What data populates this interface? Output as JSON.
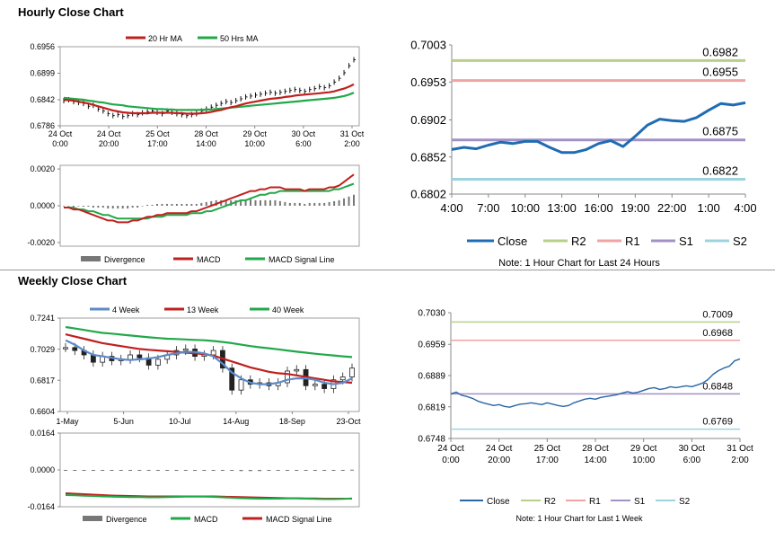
{
  "titles": {
    "hourly": "Hourly Close Chart",
    "weekly": "Weekly Close Chart"
  },
  "colors": {
    "ma20": "#c0201e",
    "ma50": "#22a84a",
    "price": "#111111",
    "close_blue": "#1f6cb4",
    "weekly_close": "#2a67a6",
    "r2": "#b7d087",
    "r1": "#f0a3a3",
    "s1": "#a391c4",
    "s2": "#9dd3dd",
    "divergence": "#777777",
    "macd": "#c0201e",
    "signal": "#22a84a",
    "week4": "#5d8ac9",
    "week13": "#c0201e",
    "week40": "#22a84a"
  },
  "chart_data": [
    {
      "id": "hourly_ma",
      "type": "line",
      "title": "Hourly Close Chart",
      "legend": [
        "20 Hr MA",
        "50 Hrs MA"
      ],
      "y_ticks": [
        "0.6956",
        "0.6899",
        "0.6842",
        "0.6786"
      ],
      "ylim": [
        0.6786,
        0.6956
      ],
      "x_ticks": [
        [
          "24 Oct",
          "0:00"
        ],
        [
          "24 Oct",
          "20:00"
        ],
        [
          "25 Oct",
          "17:00"
        ],
        [
          "28 Oct",
          "14:00"
        ],
        [
          "29 Oct",
          "10:00"
        ],
        [
          "30 Oct",
          "6:00"
        ],
        [
          "31 Oct",
          "2:00"
        ]
      ],
      "price": [
        0.684,
        0.6842,
        0.6838,
        0.6836,
        0.6834,
        0.6828,
        0.683,
        0.6822,
        0.6818,
        0.6812,
        0.6808,
        0.681,
        0.6806,
        0.6808,
        0.6812,
        0.681,
        0.6814,
        0.6816,
        0.6818,
        0.6815,
        0.6812,
        0.6818,
        0.6815,
        0.6812,
        0.681,
        0.6808,
        0.681,
        0.6812,
        0.6818,
        0.6822,
        0.6826,
        0.683,
        0.6834,
        0.6838,
        0.6836,
        0.684,
        0.6844,
        0.6848,
        0.685,
        0.6852,
        0.6854,
        0.6856,
        0.6858,
        0.6856,
        0.6858,
        0.686,
        0.6862,
        0.6864,
        0.6862,
        0.686,
        0.6864,
        0.6866,
        0.687,
        0.6868,
        0.6872,
        0.688,
        0.6888,
        0.69,
        0.6915,
        0.6928
      ],
      "ma20": [
        0.6842,
        0.6841,
        0.684,
        0.6838,
        0.6836,
        0.6834,
        0.6831,
        0.6828,
        0.6825,
        0.6822,
        0.6819,
        0.6817,
        0.6815,
        0.6814,
        0.6813,
        0.6813,
        0.6813,
        0.6813,
        0.6814,
        0.6814,
        0.6814,
        0.6814,
        0.6814,
        0.6813,
        0.6813,
        0.6812,
        0.6812,
        0.6812,
        0.6813,
        0.6814,
        0.6816,
        0.6818,
        0.682,
        0.6823,
        0.6826,
        0.6828,
        0.6831,
        0.6834,
        0.6836,
        0.6838,
        0.684,
        0.6842,
        0.6844,
        0.6845,
        0.6846,
        0.6848,
        0.6849,
        0.6851,
        0.6852,
        0.6853,
        0.6854,
        0.6855,
        0.6856,
        0.6857,
        0.6858,
        0.686,
        0.6863,
        0.6866,
        0.687,
        0.6875
      ],
      "ma50": [
        0.6846,
        0.6845,
        0.6844,
        0.6843,
        0.6842,
        0.684,
        0.6839,
        0.6837,
        0.6836,
        0.6834,
        0.6832,
        0.6831,
        0.683,
        0.6828,
        0.6827,
        0.6826,
        0.6825,
        0.6824,
        0.6823,
        0.6822,
        0.6822,
        0.6821,
        0.6821,
        0.682,
        0.682,
        0.682,
        0.682,
        0.682,
        0.682,
        0.6821,
        0.6821,
        0.6822,
        0.6823,
        0.6824,
        0.6825,
        0.6826,
        0.6827,
        0.6828,
        0.6829,
        0.683,
        0.6831,
        0.6832,
        0.6833,
        0.6834,
        0.6835,
        0.6836,
        0.6837,
        0.6838,
        0.6839,
        0.684,
        0.6841,
        0.6842,
        0.6843,
        0.6844,
        0.6845,
        0.6846,
        0.6848,
        0.685,
        0.6853,
        0.6857
      ]
    },
    {
      "id": "hourly_macd",
      "type": "line",
      "legend": [
        "Divergence",
        "MACD",
        "MACD Signal Line"
      ],
      "y_ticks": [
        "0.0020",
        "0.0000",
        "-0.0020"
      ],
      "ylim": [
        -0.0022,
        0.0022
      ],
      "macd": [
        -0.0001,
        -0.0001,
        -0.0002,
        -0.0002,
        -0.0003,
        -0.0004,
        -0.0005,
        -0.0006,
        -0.0007,
        -0.0008,
        -0.0008,
        -0.0009,
        -0.0009,
        -0.0009,
        -0.0008,
        -0.0008,
        -0.0007,
        -0.0006,
        -0.0006,
        -0.0005,
        -0.0005,
        -0.0004,
        -0.0004,
        -0.0004,
        -0.0004,
        -0.0004,
        -0.0003,
        -0.0003,
        -0.0002,
        -0.0001,
        0.0,
        0.0001,
        0.0002,
        0.0003,
        0.0004,
        0.0005,
        0.0006,
        0.0007,
        0.0008,
        0.0008,
        0.0009,
        0.0009,
        0.001,
        0.001,
        0.001,
        0.0009,
        0.0009,
        0.0009,
        0.0009,
        0.0008,
        0.0009,
        0.0009,
        0.0009,
        0.0009,
        0.001,
        0.001,
        0.0011,
        0.0013,
        0.0015,
        0.0017
      ],
      "signal": [
        -0.0001,
        -0.0001,
        -0.0001,
        -0.0002,
        -0.0002,
        -0.0003,
        -0.0003,
        -0.0004,
        -0.0005,
        -0.0005,
        -0.0006,
        -0.0007,
        -0.0007,
        -0.0007,
        -0.0007,
        -0.0007,
        -0.0007,
        -0.0007,
        -0.0006,
        -0.0006,
        -0.0006,
        -0.0005,
        -0.0005,
        -0.0005,
        -0.0005,
        -0.0005,
        -0.0004,
        -0.0004,
        -0.0004,
        -0.0003,
        -0.0003,
        -0.0002,
        -0.0001,
        0.0,
        0.0001,
        0.0002,
        0.0003,
        0.0003,
        0.0004,
        0.0005,
        0.0006,
        0.0006,
        0.0007,
        0.0007,
        0.0008,
        0.0008,
        0.0008,
        0.0008,
        0.0008,
        0.0008,
        0.0008,
        0.0008,
        0.0008,
        0.0008,
        0.0008,
        0.0009,
        0.0009,
        0.001,
        0.0011,
        0.0012
      ],
      "divergence": [
        0.0,
        0.0,
        -5e-05,
        0.0,
        -5e-05,
        -5e-05,
        -0.0001,
        -0.0001,
        -0.0001,
        -0.00015,
        -0.00015,
        -0.00015,
        -0.00015,
        -0.00015,
        -0.0001,
        -0.0001,
        0.0,
        5e-05,
        5e-05,
        0.0001,
        0.0001,
        0.0001,
        0.0001,
        0.0001,
        0.0001,
        0.0001,
        0.0001,
        0.0001,
        0.00015,
        0.0002,
        0.00025,
        0.0003,
        0.0003,
        0.0003,
        0.0003,
        0.0003,
        0.0003,
        0.00035,
        0.00035,
        0.0003,
        0.0003,
        0.0003,
        0.0003,
        0.0003,
        0.00025,
        0.0002,
        0.00015,
        0.00015,
        0.00015,
        0.0001,
        0.00015,
        0.00015,
        0.00015,
        0.00015,
        0.0002,
        0.00025,
        0.0003,
        0.0004,
        0.0005,
        0.0006
      ]
    },
    {
      "id": "hourly_close",
      "type": "line",
      "note": "Note: 1 Hour Chart for Last 24 Hours",
      "legend": [
        "Close",
        "R2",
        "R1",
        "S1",
        "S2"
      ],
      "y_ticks": [
        "0.7003",
        "0.6953",
        "0.6902",
        "0.6852",
        "0.6802"
      ],
      "ylim": [
        0.6802,
        0.7003
      ],
      "x_ticks": [
        "4:00",
        "7:00",
        "10:00",
        "13:00",
        "16:00",
        "19:00",
        "22:00",
        "1:00",
        "4:00"
      ],
      "close": [
        0.6862,
        0.6865,
        0.6863,
        0.6868,
        0.6872,
        0.687,
        0.6873,
        0.6873,
        0.6865,
        0.6858,
        0.6858,
        0.6862,
        0.687,
        0.6874,
        0.6866,
        0.688,
        0.6895,
        0.6903,
        0.6901,
        0.69,
        0.6905,
        0.6915,
        0.6924,
        0.6922,
        0.6925
      ],
      "levels": [
        {
          "name": "R2",
          "value": 0.6982,
          "label": "0.6982"
        },
        {
          "name": "R1",
          "value": 0.6955,
          "label": "0.6955"
        },
        {
          "name": "S1",
          "value": 0.6875,
          "label": "0.6875"
        },
        {
          "name": "S2",
          "value": 0.6822,
          "label": "0.6822"
        }
      ]
    },
    {
      "id": "weekly_ma",
      "type": "line",
      "title": "Weekly Close Chart",
      "legend": [
        "4 Week",
        "13 Week",
        "40 Week"
      ],
      "y_ticks": [
        "0.7241",
        "0.7029",
        "0.6817",
        "0.6604"
      ],
      "ylim": [
        0.6604,
        0.7241
      ],
      "x_ticks": [
        "1-May",
        "5-Jun",
        "10-Jul",
        "14-Aug",
        "18-Sep",
        "23-Oct"
      ],
      "close": [
        0.704,
        0.702,
        0.699,
        0.694,
        0.698,
        0.695,
        0.696,
        0.699,
        0.697,
        0.692,
        0.696,
        0.699,
        0.702,
        0.703,
        0.698,
        0.699,
        0.702,
        0.69,
        0.675,
        0.682,
        0.679,
        0.68,
        0.678,
        0.68,
        0.688,
        0.689,
        0.678,
        0.679,
        0.676,
        0.682,
        0.684,
        0.69
      ],
      "week4": [
        0.709,
        0.706,
        0.702,
        0.699,
        0.698,
        0.697,
        0.696,
        0.6955,
        0.696,
        0.6965,
        0.6975,
        0.699,
        0.7,
        0.701,
        0.701,
        0.7,
        0.698,
        0.693,
        0.687,
        0.683,
        0.68,
        0.679,
        0.679,
        0.68,
        0.682,
        0.683,
        0.683,
        0.682,
        0.68,
        0.679,
        0.68,
        0.683
      ],
      "week13": [
        0.713,
        0.7115,
        0.71,
        0.7085,
        0.707,
        0.706,
        0.705,
        0.704,
        0.703,
        0.7025,
        0.702,
        0.7015,
        0.701,
        0.7005,
        0.7,
        0.6995,
        0.6985,
        0.6965,
        0.6945,
        0.6925,
        0.6905,
        0.689,
        0.6875,
        0.6865,
        0.686,
        0.685,
        0.684,
        0.683,
        0.682,
        0.681,
        0.6805,
        0.68
      ],
      "week40": [
        0.718,
        0.717,
        0.716,
        0.715,
        0.714,
        0.7135,
        0.7128,
        0.7122,
        0.7116,
        0.711,
        0.7105,
        0.71,
        0.7098,
        0.7095,
        0.7092,
        0.709,
        0.7085,
        0.7078,
        0.707,
        0.706,
        0.705,
        0.7042,
        0.7035,
        0.7028,
        0.702,
        0.7012,
        0.7005,
        0.6998,
        0.6992,
        0.6986,
        0.698,
        0.6975
      ]
    },
    {
      "id": "weekly_macd",
      "type": "line",
      "legend": [
        "Divergence",
        "MACD",
        "MACD Signal Line"
      ],
      "y_ticks": [
        "0.0164",
        "0.0000",
        "-0.0164"
      ],
      "ylim": [
        -0.0164,
        0.0164
      ],
      "macd": [
        -0.0112,
        -0.0113,
        -0.0115,
        -0.0116,
        -0.0118,
        -0.0119,
        -0.012,
        -0.0121,
        -0.0121,
        -0.0122,
        -0.0122,
        -0.0121,
        -0.012,
        -0.0119,
        -0.0119,
        -0.0119,
        -0.012,
        -0.0122,
        -0.0124,
        -0.0126,
        -0.0127,
        -0.0128,
        -0.0128,
        -0.0128,
        -0.0127,
        -0.0127,
        -0.0128,
        -0.0129,
        -0.013,
        -0.013,
        -0.0129,
        -0.0127
      ],
      "signal": [
        -0.0104,
        -0.0106,
        -0.0108,
        -0.011,
        -0.0112,
        -0.0114,
        -0.0115,
        -0.0116,
        -0.0117,
        -0.0118,
        -0.0118,
        -0.0118,
        -0.0118,
        -0.0118,
        -0.0118,
        -0.0118,
        -0.0118,
        -0.0119,
        -0.012,
        -0.0121,
        -0.0122,
        -0.0123,
        -0.0124,
        -0.0125,
        -0.0126,
        -0.0126,
        -0.0127,
        -0.0127,
        -0.0128,
        -0.0128,
        -0.0128,
        -0.0128
      ],
      "divergence": [
        -0.0002,
        -0.0002,
        -0.0002,
        -0.0002,
        -0.0002,
        -0.0002,
        -0.0002,
        -0.0002,
        -0.0002,
        -0.0002,
        -0.0002,
        -0.0001,
        -0.0001,
        -0.0001,
        -0.0001,
        -0.0001,
        -0.0002,
        -0.0003,
        -0.0004,
        -0.0005,
        -0.0005,
        -0.0005,
        -0.0004,
        -0.0003,
        -0.0001,
        -0.0001,
        -0.0001,
        -0.0002,
        -0.0002,
        -0.0002,
        -0.0001,
        0.0001
      ]
    },
    {
      "id": "weekly_close",
      "type": "line",
      "note": "Note: 1 Hour Chart for Last 1 Week",
      "legend": [
        "Close",
        "R2",
        "R1",
        "S1",
        "S2"
      ],
      "y_ticks": [
        "0.7030",
        "0.6959",
        "0.6889",
        "0.6819",
        "0.6748"
      ],
      "ylim": [
        0.6748,
        0.703
      ],
      "x_ticks": [
        [
          "24 Oct",
          "0:00"
        ],
        [
          "24 Oct",
          "20:00"
        ],
        [
          "25 Oct",
          "17:00"
        ],
        [
          "28 Oct",
          "14:00"
        ],
        [
          "29 Oct",
          "10:00"
        ],
        [
          "30 Oct",
          "6:00"
        ],
        [
          "31 Oct",
          "2:00"
        ]
      ],
      "close": [
        0.6848,
        0.6852,
        0.6845,
        0.6842,
        0.6838,
        0.6832,
        0.6828,
        0.6825,
        0.6822,
        0.6824,
        0.682,
        0.6818,
        0.6822,
        0.6825,
        0.6826,
        0.6828,
        0.6826,
        0.6824,
        0.6828,
        0.6825,
        0.6822,
        0.682,
        0.6822,
        0.6828,
        0.6832,
        0.6836,
        0.6838,
        0.6836,
        0.684,
        0.6842,
        0.6844,
        0.6846,
        0.685,
        0.6853,
        0.685,
        0.6852,
        0.6856,
        0.686,
        0.6862,
        0.6858,
        0.686,
        0.6864,
        0.6862,
        0.6864,
        0.6866,
        0.6864,
        0.6868,
        0.6872,
        0.688,
        0.6892,
        0.69,
        0.6906,
        0.691,
        0.6922,
        0.6926
      ],
      "levels": [
        {
          "name": "R2",
          "value": 0.7009,
          "label": "0.7009"
        },
        {
          "name": "R1",
          "value": 0.6968,
          "label": "0.6968"
        },
        {
          "name": "S1",
          "value": 0.6848,
          "label": "0.6848"
        },
        {
          "name": "S2",
          "value": 0.6769,
          "label": "0.6769"
        }
      ]
    }
  ]
}
